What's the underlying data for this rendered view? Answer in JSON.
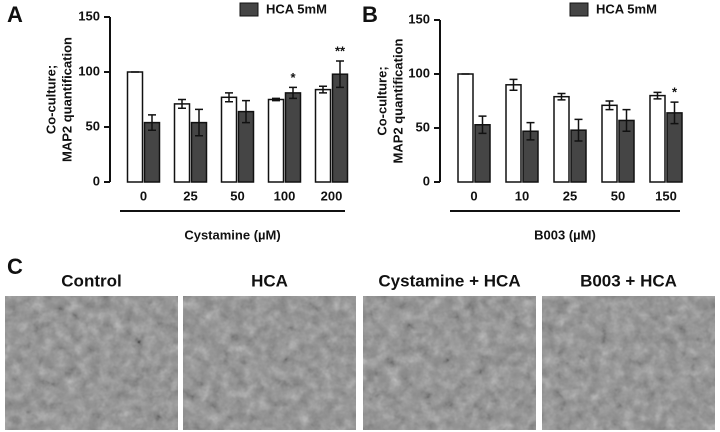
{
  "chart_data": [
    {
      "type": "bar",
      "panel_label": "A",
      "ylabel": [
        "Co-culture;",
        "MAP2 quantification"
      ],
      "xlabel": "Cystamine (µM)",
      "categories": [
        "0",
        "25",
        "50",
        "100",
        "200"
      ],
      "series": [
        {
          "name": null,
          "color": "#ffffff",
          "values": [
            100,
            71,
            77,
            75,
            84
          ],
          "errors": [
            0,
            4,
            4,
            1,
            3
          ]
        },
        {
          "name": "HCA 5mM",
          "color": "#454545",
          "values": [
            54,
            54,
            64,
            81,
            98
          ],
          "errors": [
            7,
            12,
            10,
            5,
            12
          ],
          "significance": [
            null,
            null,
            null,
            "*",
            "**"
          ]
        }
      ],
      "ylim": [
        0,
        150
      ],
      "yticks": [
        0,
        50,
        100,
        150
      ]
    },
    {
      "type": "bar",
      "panel_label": "B",
      "ylabel": [
        "Co-culture;",
        "MAP2 quantification"
      ],
      "xlabel": "B003 (µM)",
      "categories": [
        "0",
        "10",
        "25",
        "50",
        "150"
      ],
      "series": [
        {
          "name": null,
          "color": "#ffffff",
          "values": [
            100,
            90,
            79,
            71,
            80
          ],
          "errors": [
            0,
            5,
            3,
            4,
            3
          ]
        },
        {
          "name": "HCA 5mM",
          "color": "#454545",
          "values": [
            53,
            47,
            48,
            57,
            64
          ],
          "errors": [
            8,
            8,
            10,
            10,
            10
          ],
          "significance": [
            null,
            null,
            null,
            null,
            "*"
          ]
        }
      ],
      "ylim": [
        0,
        150
      ],
      "yticks": [
        0,
        50,
        100,
        150
      ]
    }
  ],
  "panel_c": {
    "label": "C",
    "images": [
      "Control",
      "HCA",
      "Cystamine + HCA",
      "B003 + HCA"
    ]
  }
}
